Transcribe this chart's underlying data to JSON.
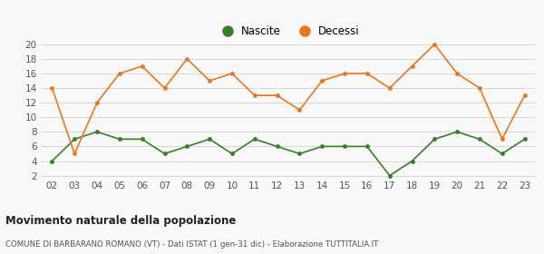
{
  "years": [
    "02",
    "03",
    "04",
    "05",
    "06",
    "07",
    "08",
    "09",
    "10",
    "11",
    "12",
    "13",
    "14",
    "15",
    "16",
    "17",
    "18",
    "19",
    "20",
    "21",
    "22",
    "23"
  ],
  "nascite": [
    4,
    7,
    8,
    7,
    7,
    5,
    6,
    7,
    5,
    7,
    6,
    5,
    6,
    6,
    6,
    2,
    4,
    7,
    8,
    7,
    5,
    7
  ],
  "decessi": [
    14,
    5,
    12,
    16,
    17,
    14,
    18,
    15,
    16,
    13,
    13,
    11,
    15,
    16,
    16,
    14,
    17,
    20,
    16,
    14,
    7,
    13
  ],
  "nascite_color": "#3a7d2c",
  "decessi_color": "#e87820",
  "ylim_min": 2,
  "ylim_max": 20,
  "yticks": [
    2,
    4,
    6,
    8,
    10,
    12,
    14,
    16,
    18,
    20
  ],
  "title": "Movimento naturale della popolazione",
  "subtitle": "COMUNE DI BARBARANO ROMANO (VT) - Dati ISTAT (1 gen-31 dic) - Elaborazione TUTTITALIA.IT",
  "legend_nascite": "Nascite",
  "legend_decessi": "Decessi",
  "background_color": "#f8f8f8",
  "grid_color": "#d8d8d8"
}
